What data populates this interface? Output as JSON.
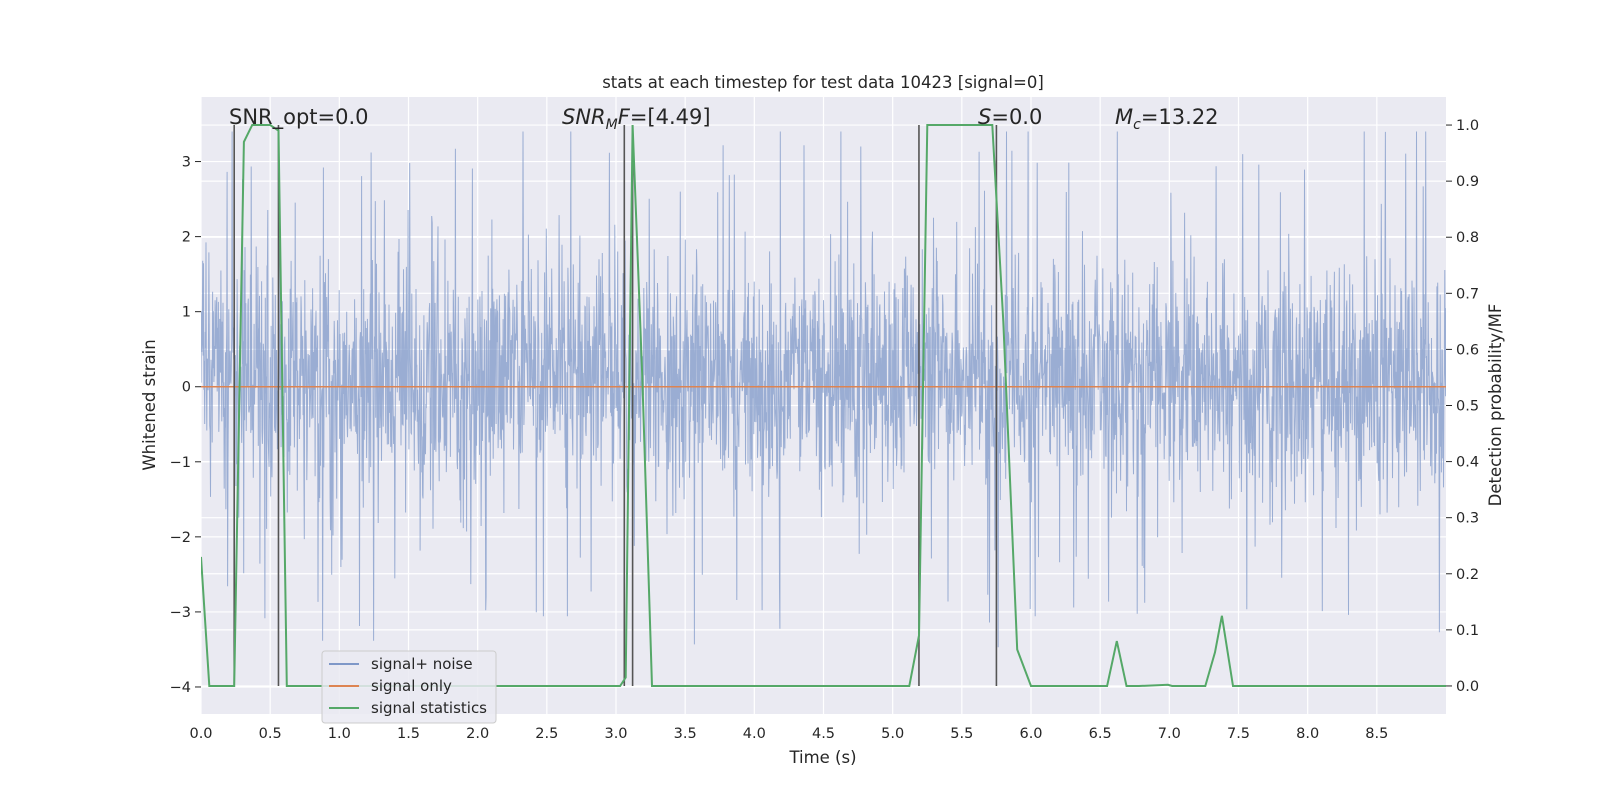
{
  "chart_data": {
    "type": "line",
    "title": "stats at each timestep for test data 10423 [signal=0]",
    "xlabel": "Time (s)",
    "ylabel_left": "Whitened strain",
    "ylabel_right": "Detection probability/MF",
    "xlim": [
      0.0,
      9.0
    ],
    "ylim_left": [
      -4.36,
      3.86
    ],
    "ylim_right": [
      -0.05,
      1.05
    ],
    "x_ticks": [
      "0.0",
      "0.5",
      "1.0",
      "1.5",
      "2.0",
      "2.5",
      "3.0",
      "3.5",
      "4.0",
      "4.5",
      "5.0",
      "5.5",
      "6.0",
      "6.5",
      "7.0",
      "7.5",
      "8.0",
      "8.5"
    ],
    "y_left_ticks": [
      "3",
      "2",
      "1",
      "0",
      "−1",
      "−2",
      "−3",
      "−4"
    ],
    "y_right_ticks": [
      "1.0",
      "0.9",
      "0.8",
      "0.7",
      "0.6",
      "0.5",
      "0.4",
      "0.3",
      "0.2",
      "0.1",
      "0.0"
    ],
    "grid": true,
    "legend_position": "lower-left",
    "annotations": [
      {
        "text": "SNR_opt=0.0"
      },
      {
        "prefix": "SNR",
        "sub": "M",
        "mid": "F",
        "suffix": "=[4.49]"
      },
      {
        "italic": "S",
        "suffix": "=0.0"
      },
      {
        "italic": "M",
        "sub": "c",
        "suffix": "=13.22"
      }
    ],
    "series": [
      {
        "name": "signal+ noise",
        "color": "#7f98c8",
        "axis": "left",
        "style": "noise",
        "x_range": [
          0.0,
          9.0
        ],
        "typical_range": [
          -1.8,
          2.0
        ],
        "extreme_range": [
          -4.0,
          3.4
        ]
      },
      {
        "name": "signal only",
        "color": "#dd8452",
        "axis": "left",
        "x": [
          0.0,
          9.0
        ],
        "values": [
          0.0,
          0.0
        ]
      },
      {
        "name": "signal statistics",
        "color": "#55a868",
        "axis": "right",
        "x": [
          0.0,
          0.06,
          0.24,
          0.31,
          0.37,
          0.5,
          0.56,
          0.62,
          0.65,
          3.03,
          3.07,
          3.12,
          3.19,
          3.26,
          5.12,
          5.19,
          5.25,
          5.72,
          5.8,
          5.9,
          6.0,
          6.55,
          6.62,
          6.69,
          6.78,
          6.99,
          7.02,
          7.26,
          7.33,
          7.38,
          7.46,
          7.52,
          9.0
        ],
        "values": [
          0.23,
          0.0,
          0.0,
          0.97,
          1.0,
          1.0,
          0.99,
          0.0,
          0.0,
          0.0,
          0.015,
          1.0,
          0.55,
          0.0,
          0.0,
          0.09,
          1.0,
          1.0,
          0.65,
          0.065,
          0.0,
          0.0,
          0.08,
          0.0,
          0.0,
          0.002,
          0.0,
          0.0,
          0.06,
          0.125,
          0.0,
          0.0,
          0.0
        ]
      }
    ],
    "vertical_lines": {
      "color": "#555555",
      "x": [
        0.24,
        0.56,
        3.06,
        3.12,
        5.19,
        5.75
      ],
      "y_top_right_axis": 1.0,
      "y_bottom_right_axis": 0.0
    },
    "legend": {
      "entries": [
        "signal+ noise",
        "signal only",
        "signal statistics"
      ]
    }
  }
}
